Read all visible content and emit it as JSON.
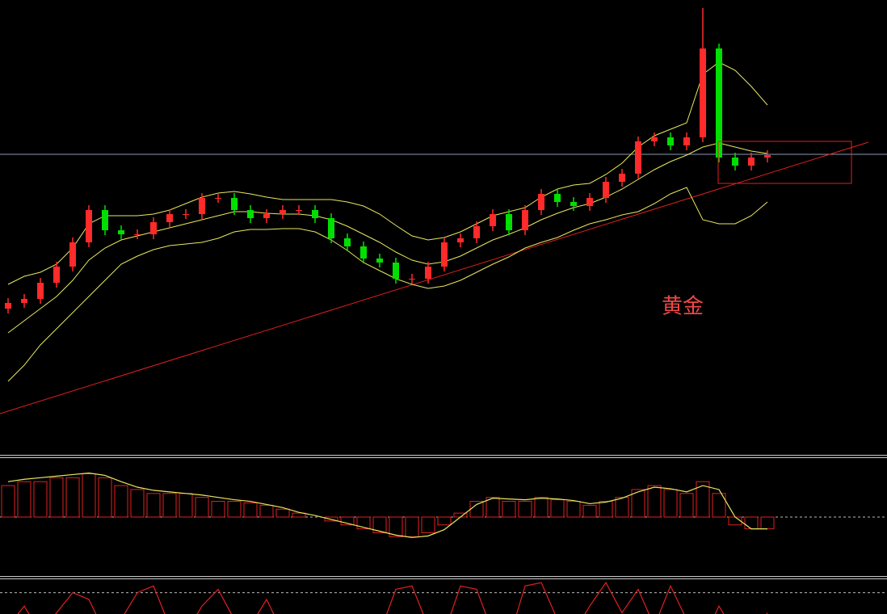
{
  "chart_data": [
    {
      "type": "candlestick",
      "annotation": "黄金",
      "annotation_color": "#f04848",
      "ylim": [
        0,
        562
      ],
      "up_color": "#ff2a2a",
      "down_color": "#00e000",
      "open": [
        180,
        187,
        192,
        212,
        232,
        262,
        302,
        277,
        272,
        272,
        287,
        297,
        297,
        317,
        317,
        302,
        292,
        297,
        302,
        302,
        292,
        267,
        257,
        242,
        237,
        217,
        217,
        232,
        262,
        267,
        282,
        297,
        277,
        302,
        322,
        312,
        307,
        317,
        337,
        347,
        387,
        392,
        382,
        392,
        502,
        367,
        357,
        367
      ],
      "high": [
        193,
        198,
        218,
        238,
        268,
        308,
        308,
        283,
        278,
        293,
        303,
        303,
        323,
        323,
        323,
        308,
        303,
        308,
        308,
        308,
        298,
        273,
        263,
        248,
        243,
        223,
        238,
        268,
        273,
        288,
        303,
        303,
        308,
        328,
        328,
        318,
        323,
        343,
        353,
        393,
        398,
        398,
        398,
        552,
        508,
        373,
        373,
        376
      ],
      "low": [
        174,
        181,
        186,
        206,
        226,
        256,
        271,
        266,
        266,
        266,
        281,
        291,
        291,
        311,
        296,
        286,
        286,
        291,
        296,
        286,
        261,
        251,
        236,
        231,
        211,
        211,
        211,
        226,
        256,
        261,
        276,
        271,
        271,
        296,
        306,
        301,
        301,
        311,
        331,
        341,
        381,
        376,
        376,
        386,
        361,
        351,
        351,
        361
      ],
      "close": [
        187,
        192,
        212,
        232,
        262,
        302,
        277,
        272,
        272,
        287,
        297,
        297,
        317,
        317,
        302,
        292,
        297,
        302,
        302,
        292,
        267,
        257,
        242,
        237,
        217,
        217,
        232,
        262,
        267,
        282,
        297,
        277,
        302,
        322,
        312,
        307,
        317,
        337,
        347,
        387,
        392,
        382,
        392,
        502,
        367,
        357,
        367,
        370
      ],
      "bands": [
        {
          "color": "#e8e860",
          "values": [
            210,
            220,
            225,
            235,
            255,
            285,
            295,
            295,
            295,
            297,
            302,
            310,
            318,
            323,
            325,
            322,
            318,
            315,
            315,
            315,
            315,
            312,
            307,
            297,
            283,
            270,
            265,
            268,
            275,
            285,
            295,
            300,
            305,
            318,
            328,
            333,
            335,
            346,
            360,
            380,
            394,
            402,
            410,
            470,
            485,
            475,
            455,
            432
          ]
        },
        {
          "color": "#e8e860",
          "values": [
            150,
            165,
            180,
            195,
            215,
            240,
            255,
            265,
            270,
            275,
            280,
            285,
            290,
            295,
            300,
            300,
            298,
            297,
            297,
            295,
            290,
            282,
            272,
            262,
            250,
            240,
            235,
            238,
            245,
            255,
            265,
            272,
            280,
            290,
            298,
            305,
            310,
            318,
            328,
            340,
            352,
            362,
            370,
            380,
            385,
            380,
            375,
            372
          ]
        },
        {
          "color": "#e8e860",
          "values": [
            90,
            110,
            135,
            155,
            175,
            195,
            215,
            235,
            245,
            253,
            258,
            260,
            262,
            267,
            275,
            278,
            278,
            279,
            279,
            275,
            265,
            252,
            237,
            227,
            217,
            210,
            205,
            208,
            215,
            225,
            235,
            244,
            255,
            262,
            268,
            277,
            285,
            290,
            296,
            300,
            310,
            322,
            330,
            290,
            285,
            285,
            295,
            312
          ]
        }
      ],
      "ref_line": 371,
      "trend_line": [
        50,
        386
      ],
      "box": [
        387,
        335
      ]
    },
    {
      "type": "macd",
      "ylim": [
        -7.5,
        7.5
      ],
      "color": "#e02020",
      "line_color": "#e8e860",
      "values": [
        4,
        4.5,
        4.5,
        5,
        5,
        5.5,
        5,
        4,
        3.5,
        3,
        3,
        3,
        2.5,
        2,
        2,
        1.8,
        1.5,
        1,
        0.5,
        0,
        -0.5,
        -1,
        -1.5,
        -2,
        -2.5,
        -2.5,
        -2,
        -1,
        0.5,
        2,
        2.5,
        2,
        2,
        2.5,
        2.2,
        2,
        1.5,
        2,
        2.5,
        3.5,
        4,
        3.5,
        3,
        4.5,
        3,
        -1,
        -1.5,
        -1.5
      ],
      "line": [
        4.5,
        4.8,
        5,
        5.2,
        5.4,
        5.6,
        5.3,
        4.5,
        3.8,
        3.4,
        3.2,
        3,
        2.8,
        2.5,
        2.2,
        2,
        1.6,
        1.2,
        0.6,
        0.2,
        -0.3,
        -0.8,
        -1.3,
        -1.8,
        -2.3,
        -2.6,
        -2.4,
        -1.6,
        0,
        1.6,
        2.4,
        2.3,
        2.2,
        2.4,
        2.3,
        2.1,
        1.7,
        1.9,
        2.4,
        3.2,
        3.8,
        3.6,
        3.2,
        4,
        3.5,
        0,
        -1.5,
        -1.5
      ]
    },
    {
      "type": "oscillator",
      "ylim": [
        0,
        100
      ],
      "levels": [
        80
      ],
      "color": "#e02020",
      "values": [
        30,
        60,
        20,
        50,
        80,
        70,
        20,
        40,
        80,
        90,
        30,
        20,
        60,
        85,
        40,
        30,
        70,
        20,
        10,
        40,
        20,
        10,
        15,
        20,
        85,
        90,
        30,
        20,
        90,
        85,
        20,
        10,
        90,
        95,
        40,
        20,
        60,
        95,
        50,
        85,
        30,
        90,
        40,
        10,
        60,
        20,
        10,
        50
      ]
    }
  ]
}
